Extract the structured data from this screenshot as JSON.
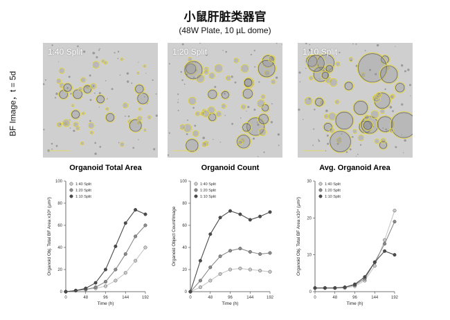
{
  "header": {
    "title": "小鼠肝脏类器官",
    "subtitle": "(48W Plate, 10 µL dome)"
  },
  "side_label": "BF Image，t = 5d",
  "panels": [
    {
      "label": "1:40 Split"
    },
    {
      "label": "1:20 Split"
    },
    {
      "label": "1:10 Split"
    }
  ],
  "colors": {
    "s140": "#c8c8c8",
    "s120": "#8a8a8a",
    "s110": "#4a4a4a",
    "organoid_outline": "#e6d84a",
    "panel_bg": "#cfcfcf"
  },
  "chart_data": [
    {
      "type": "line",
      "title": "Organoid Total Area",
      "xlabel": "Time (h)",
      "ylabel": "Organoid Obj. Total BF Area x10⁶ (µm²)",
      "xlim": [
        0,
        192
      ],
      "ylim": [
        0,
        100
      ],
      "xticks": [
        0,
        48,
        96,
        144,
        192
      ],
      "yticks": [
        0,
        20,
        40,
        60,
        80,
        100
      ],
      "legend_position": "top-left",
      "x": [
        0,
        24,
        48,
        72,
        96,
        120,
        144,
        168,
        192
      ],
      "series": [
        {
          "name": "1:40 Split",
          "values": [
            0,
            1,
            2,
            3,
            5,
            10,
            17,
            28,
            40
          ]
        },
        {
          "name": "1:20 Split",
          "values": [
            0,
            1,
            2,
            4,
            9,
            20,
            34,
            50,
            60
          ]
        },
        {
          "name": "1:10 Split",
          "values": [
            0,
            1,
            3,
            8,
            20,
            41,
            62,
            74,
            70
          ]
        }
      ]
    },
    {
      "type": "line",
      "title": "Organoid Count",
      "xlabel": "Time (h)",
      "ylabel": "Organoid Object Count/Image",
      "xlim": [
        0,
        192
      ],
      "ylim": [
        0,
        100
      ],
      "xticks": [
        0,
        48,
        96,
        144,
        192
      ],
      "yticks": [
        0,
        20,
        40,
        60,
        80,
        100
      ],
      "legend_position": "top-left",
      "x": [
        0,
        24,
        48,
        72,
        96,
        120,
        144,
        168,
        192
      ],
      "series": [
        {
          "name": "1:40 Split",
          "values": [
            0,
            4,
            10,
            16,
            20,
            21,
            20,
            19,
            18
          ]
        },
        {
          "name": "1:20 Split",
          "values": [
            0,
            10,
            22,
            32,
            37,
            39,
            36,
            34,
            35
          ]
        },
        {
          "name": "1:10 Split",
          "values": [
            0,
            28,
            52,
            67,
            73,
            70,
            65,
            68,
            72
          ]
        }
      ]
    },
    {
      "type": "line",
      "title": "Avg. Organoid Area",
      "xlabel": "Time (h)",
      "ylabel": "Organoid Obj. Total BF Area x10⁴ (µm²)",
      "xlim": [
        0,
        192
      ],
      "ylim": [
        0,
        30
      ],
      "xticks": [
        0,
        48,
        96,
        144,
        192
      ],
      "yticks": [
        0,
        10,
        20,
        30
      ],
      "legend_position": "top-left",
      "x": [
        0,
        24,
        48,
        72,
        96,
        120,
        144,
        168,
        192
      ],
      "series": [
        {
          "name": "1:40 Split",
          "values": [
            1,
            1,
            1,
            1,
            1.5,
            3,
            7,
            14,
            22
          ]
        },
        {
          "name": "1:20 Split",
          "values": [
            1,
            1,
            1,
            1.2,
            1.8,
            3.5,
            8,
            13,
            19
          ]
        },
        {
          "name": "1:10 Split",
          "values": [
            1,
            1,
            1,
            1.2,
            2,
            4,
            8,
            11,
            10
          ]
        }
      ]
    }
  ]
}
